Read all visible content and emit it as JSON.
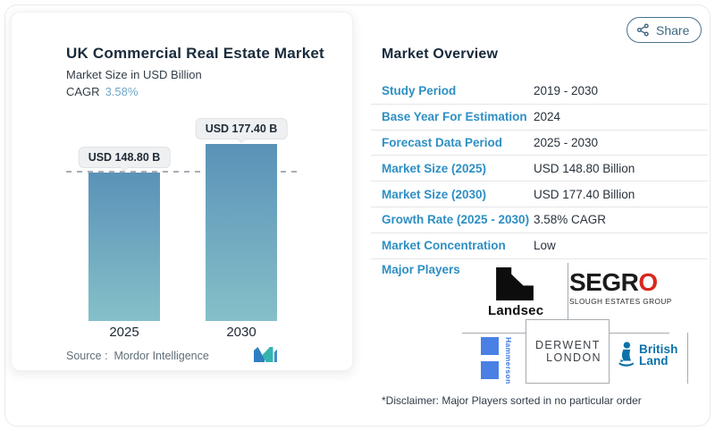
{
  "left_card": {
    "title": "UK Commercial Real Estate Market",
    "subtitle": "Market Size in USD Billion",
    "cagr_label": "CAGR",
    "cagr_value": "3.58%",
    "source_label": "Source :",
    "source_value": "Mordor Intelligence"
  },
  "chart_data": {
    "type": "bar",
    "categories": [
      "2025",
      "2030"
    ],
    "values": [
      148.8,
      177.4
    ],
    "bar_labels": [
      "USD 148.80 B",
      "USD 177.40 B"
    ],
    "title": "UK Commercial Real Estate Market",
    "ylabel": "Market Size in USD Billion",
    "ylim": [
      0,
      177.4
    ],
    "grid": false,
    "legend": "none",
    "dashed_reference_line_at": 148.8,
    "bar_color_top": "#5a92b8",
    "bar_color_bottom": "#85c0c8"
  },
  "share_button": {
    "label": "Share"
  },
  "overview": {
    "heading": "Market Overview",
    "rows": [
      {
        "label": "Study Period",
        "value": "2019 - 2030"
      },
      {
        "label": "Base Year For Estimation",
        "value": "2024"
      },
      {
        "label": "Forecast Data Period",
        "value": "2025 - 2030"
      },
      {
        "label": "Market Size (2025)",
        "value": "USD 148.80 Billion"
      },
      {
        "label": "Market Size (2030)",
        "value": "USD 177.40 Billion"
      },
      {
        "label": "Growth Rate (2025 - 2030)",
        "value": "3.58% CAGR"
      },
      {
        "label": "Market Concentration",
        "value": "Low"
      }
    ],
    "major_players_label": "Major Players",
    "disclaimer": "*Disclaimer: Major Players sorted in no particular order"
  },
  "logos": {
    "landsec_text": "Landsec",
    "segro_main": "SEGR",
    "segro_o": "O",
    "segro_sub": "SLOUGH ESTATES GROUP",
    "hammerson_text": "Hammerson",
    "derwent_line1": "DERWENT",
    "derwent_line2": "LONDON",
    "british_land_line1": "British",
    "british_land_line2": "Land"
  },
  "colors": {
    "accent_label_blue": "#2e8fc4",
    "cagr_value_blue": "#72a7c9",
    "segro_red": "#d7281e",
    "hammerson_blue": "#4a80e4",
    "british_land_blue": "#0d71a9",
    "mi_logo_blue": "#2e7fc2",
    "mi_logo_teal": "#35b4af"
  }
}
